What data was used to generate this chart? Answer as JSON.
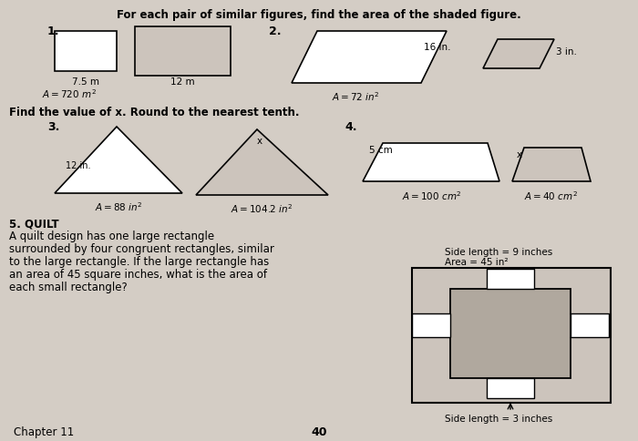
{
  "bg_color": "#d4cdc5",
  "title": "For each pair of similar figures, find the area of the shaded figure.",
  "subtitle": "Find the value of x. Round to the nearest tenth.",
  "footer_left": "Chapter 11",
  "footer_center": "40",
  "side_length_9": "Side length = 9 inches",
  "area_45": "Area = 45 in²",
  "side_length_3": "Side length = 3 inches",
  "shaded_color": "#ccc4bc",
  "white": "#ffffff",
  "quilt_outer": "#ccc4bc",
  "quilt_center": "#b0a89e"
}
